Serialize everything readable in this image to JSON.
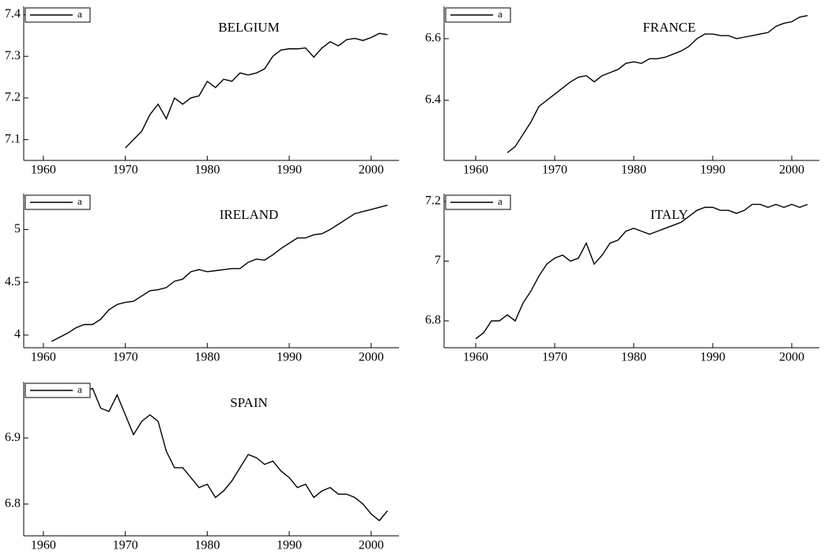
{
  "chart_data": [
    {
      "type": "line",
      "title": "BELGIUM",
      "legend": "upper left",
      "x": [
        1970,
        1971,
        1972,
        1973,
        1974,
        1975,
        1976,
        1977,
        1978,
        1979,
        1980,
        1981,
        1982,
        1983,
        1984,
        1985,
        1986,
        1987,
        1988,
        1989,
        1990,
        1991,
        1992,
        1993,
        1994,
        1995,
        1996,
        1997,
        1998,
        1999,
        2000,
        2001,
        2002
      ],
      "series": [
        {
          "name": "a",
          "color": "#000000",
          "values": [
            7.08,
            7.1,
            7.12,
            7.16,
            7.185,
            7.15,
            7.2,
            7.185,
            7.2,
            7.205,
            7.24,
            7.225,
            7.245,
            7.24,
            7.26,
            7.255,
            7.26,
            7.27,
            7.3,
            7.315,
            7.318,
            7.318,
            7.32,
            7.298,
            7.32,
            7.335,
            7.325,
            7.34,
            7.343,
            7.338,
            7.345,
            7.355,
            7.352
          ]
        }
      ],
      "xlim": [
        1957.6,
        2003.4
      ],
      "xticks": [
        1960,
        1970,
        1980,
        1990,
        2000
      ],
      "ylim": [
        7.05,
        7.42
      ],
      "yticks": [
        7.1,
        7.2,
        7.3,
        7.4
      ]
    },
    {
      "type": "line",
      "title": "FRANCE",
      "legend": "upper left",
      "x": [
        1964,
        1965,
        1966,
        1967,
        1968,
        1969,
        1970,
        1971,
        1972,
        1973,
        1974,
        1975,
        1976,
        1977,
        1978,
        1979,
        1980,
        1981,
        1982,
        1983,
        1984,
        1985,
        1986,
        1987,
        1988,
        1989,
        1990,
        1991,
        1992,
        1993,
        1994,
        1995,
        1996,
        1997,
        1998,
        1999,
        2000,
        2001,
        2002
      ],
      "series": [
        {
          "name": "a",
          "color": "#000000",
          "values": [
            6.23,
            6.25,
            6.29,
            6.33,
            6.38,
            6.4,
            6.42,
            6.44,
            6.46,
            6.475,
            6.48,
            6.46,
            6.48,
            6.49,
            6.5,
            6.52,
            6.525,
            6.52,
            6.535,
            6.535,
            6.54,
            6.55,
            6.56,
            6.575,
            6.6,
            6.615,
            6.615,
            6.61,
            6.61,
            6.6,
            6.605,
            6.61,
            6.615,
            6.62,
            6.64,
            6.65,
            6.655,
            6.67,
            6.675
          ]
        }
      ],
      "xlim": [
        1956,
        2003.5
      ],
      "xticks": [
        1960,
        1970,
        1980,
        1990,
        2000
      ],
      "ylim": [
        6.205,
        6.705
      ],
      "yticks": [
        6.4,
        6.6
      ]
    },
    {
      "type": "line",
      "title": "IRELAND",
      "legend": "upper left",
      "x": [
        1961,
        1962,
        1963,
        1964,
        1965,
        1966,
        1967,
        1968,
        1969,
        1970,
        1971,
        1972,
        1973,
        1974,
        1975,
        1976,
        1977,
        1978,
        1979,
        1980,
        1981,
        1982,
        1983,
        1984,
        1985,
        1986,
        1987,
        1988,
        1989,
        1990,
        1991,
        1992,
        1993,
        1994,
        1995,
        1996,
        1997,
        1998,
        1999,
        2000,
        2001,
        2002
      ],
      "series": [
        {
          "name": "a",
          "color": "#000000",
          "values": [
            3.94,
            3.98,
            4.02,
            4.07,
            4.1,
            4.1,
            4.15,
            4.24,
            4.29,
            4.31,
            4.32,
            4.37,
            4.42,
            4.43,
            4.45,
            4.51,
            4.53,
            4.6,
            4.62,
            4.6,
            4.61,
            4.62,
            4.63,
            4.63,
            4.69,
            4.72,
            4.71,
            4.76,
            4.82,
            4.87,
            4.92,
            4.92,
            4.95,
            4.96,
            5.0,
            5.05,
            5.1,
            5.15,
            5.17,
            5.19,
            5.21,
            5.23
          ]
        }
      ],
      "xlim": [
        1957.6,
        2003.4
      ],
      "xticks": [
        1960,
        1970,
        1980,
        1990,
        2000
      ],
      "ylim": [
        3.88,
        5.34
      ],
      "yticks": [
        4,
        4.5,
        5
      ]
    },
    {
      "type": "line",
      "title": "ITALY",
      "legend": "upper left",
      "x": [
        1960,
        1961,
        1962,
        1963,
        1964,
        1965,
        1966,
        1967,
        1968,
        1969,
        1970,
        1971,
        1972,
        1973,
        1974,
        1975,
        1976,
        1977,
        1978,
        1979,
        1980,
        1981,
        1982,
        1983,
        1984,
        1985,
        1986,
        1987,
        1988,
        1989,
        1990,
        1991,
        1992,
        1993,
        1994,
        1995,
        1996,
        1997,
        1998,
        1999,
        2000,
        2001,
        2002
      ],
      "series": [
        {
          "name": "a",
          "color": "#000000",
          "values": [
            6.74,
            6.76,
            6.8,
            6.8,
            6.82,
            6.8,
            6.86,
            6.9,
            6.95,
            6.99,
            7.01,
            7.02,
            7.0,
            7.01,
            7.06,
            6.99,
            7.02,
            7.06,
            7.07,
            7.1,
            7.11,
            7.1,
            7.09,
            7.1,
            7.11,
            7.12,
            7.13,
            7.15,
            7.17,
            7.18,
            7.18,
            7.17,
            7.17,
            7.16,
            7.17,
            7.19,
            7.19,
            7.18,
            7.19,
            7.18,
            7.19,
            7.18,
            7.19
          ]
        }
      ],
      "xlim": [
        1956,
        2003.5
      ],
      "xticks": [
        1960,
        1970,
        1980,
        1990,
        2000
      ],
      "ylim": [
        6.71,
        7.226
      ],
      "yticks": [
        6.8,
        7,
        7.2
      ]
    },
    {
      "type": "line",
      "title": "SPAIN",
      "legend": "upper left",
      "x": [
        1964,
        1965,
        1966,
        1967,
        1968,
        1969,
        1970,
        1971,
        1972,
        1973,
        1974,
        1975,
        1976,
        1977,
        1978,
        1979,
        1980,
        1981,
        1982,
        1983,
        1984,
        1985,
        1986,
        1987,
        1988,
        1989,
        1990,
        1991,
        1992,
        1993,
        1994,
        1995,
        1996,
        1997,
        1998,
        1999,
        2000,
        2001,
        2002
      ],
      "series": [
        {
          "name": "a",
          "color": "#000000",
          "values": [
            6.975,
            6.97,
            6.975,
            6.945,
            6.94,
            6.965,
            6.935,
            6.905,
            6.925,
            6.935,
            6.925,
            6.88,
            6.855,
            6.855,
            6.84,
            6.825,
            6.83,
            6.81,
            6.82,
            6.835,
            6.855,
            6.875,
            6.87,
            6.86,
            6.865,
            6.85,
            6.84,
            6.825,
            6.83,
            6.81,
            6.82,
            6.825,
            6.815,
            6.815,
            6.81,
            6.8,
            6.785,
            6.775,
            6.79
          ]
        }
      ],
      "xlim": [
        1957.6,
        2003.4
      ],
      "xticks": [
        1960,
        1970,
        1980,
        1990,
        2000
      ],
      "ylim": [
        6.752,
        6.985
      ],
      "yticks": [
        6.8,
        6.9
      ]
    }
  ]
}
